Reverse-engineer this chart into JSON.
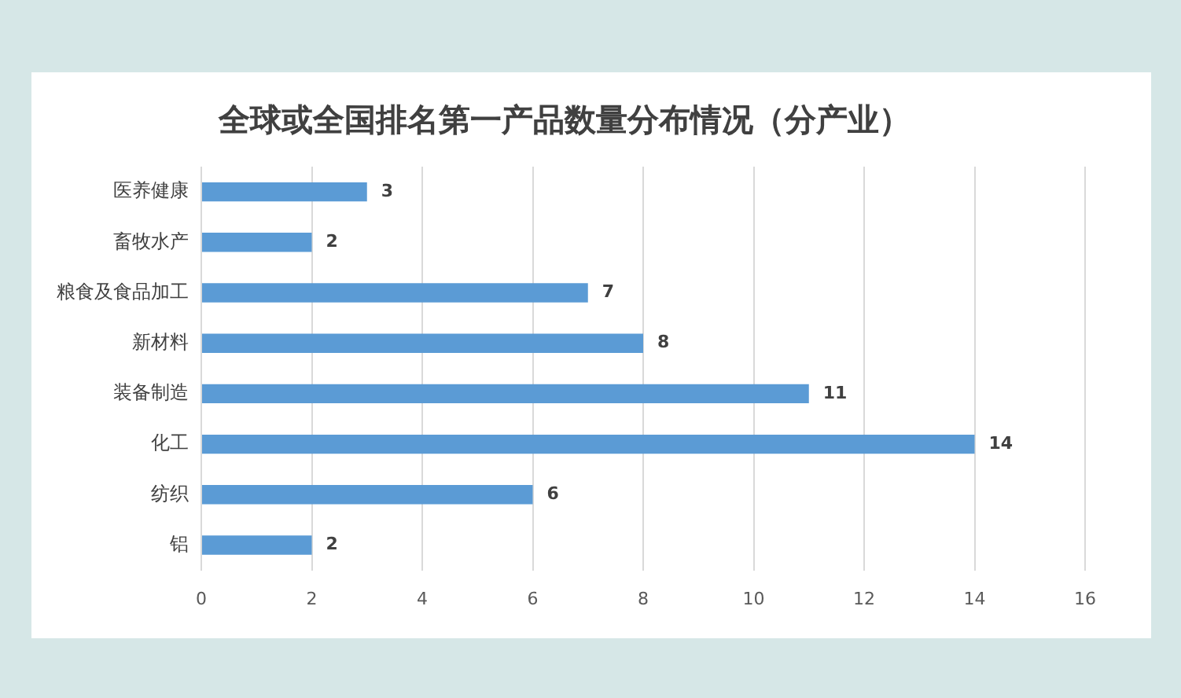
{
  "chart_data": {
    "type": "bar",
    "orientation": "horizontal",
    "title": "全球或全国排名第一产品数量分布情况（分产业）",
    "categories": [
      "医养健康",
      "畜牧水产",
      "粮食及食品加工",
      "新材料",
      "装备制造",
      "化工",
      "纺织",
      "铝"
    ],
    "values": [
      3,
      2,
      7,
      8,
      11,
      14,
      6,
      2
    ],
    "color": "#5b9bd5",
    "xlim": [
      0,
      16
    ],
    "xticks": [
      0,
      2,
      4,
      6,
      8,
      10,
      12,
      14,
      16
    ],
    "grid": "x",
    "data_labels": true
  }
}
